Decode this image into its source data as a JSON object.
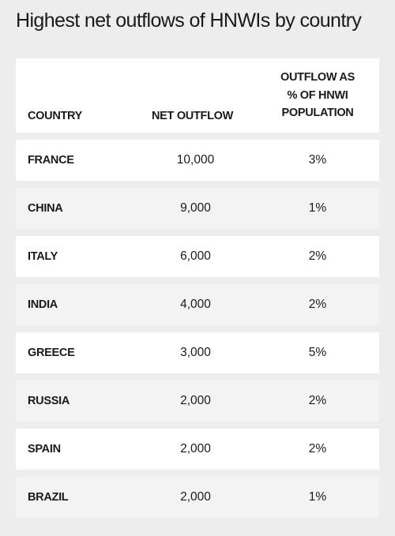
{
  "title": "Highest net outflows of HNWIs by country",
  "headers": {
    "country": "COUNTRY",
    "net_outflow": "NET OUTFLOW",
    "percent_lines": [
      "OUTFLOW AS",
      "% OF HNWI",
      "POPULATION"
    ]
  },
  "rows": [
    {
      "country": "FRANCE",
      "net_outflow": "10,000",
      "percent": "3%"
    },
    {
      "country": "CHINA",
      "net_outflow": "9,000",
      "percent": "1%"
    },
    {
      "country": "ITALY",
      "net_outflow": "6,000",
      "percent": "2%"
    },
    {
      "country": "INDIA",
      "net_outflow": "4,000",
      "percent": "2%"
    },
    {
      "country": "GREECE",
      "net_outflow": "3,000",
      "percent": "5%"
    },
    {
      "country": "RUSSIA",
      "net_outflow": "2,000",
      "percent": "2%"
    },
    {
      "country": "SPAIN",
      "net_outflow": "2,000",
      "percent": "2%"
    },
    {
      "country": "BRAZIL",
      "net_outflow": "2,000",
      "percent": "1%"
    }
  ],
  "colors": {
    "page_background": "#ededed",
    "row_background": "#ffffff",
    "alt_row_background": "#f3f3f3",
    "text": "#1a1a1a"
  },
  "chart_data": {
    "type": "table",
    "title": "Highest net outflows of HNWIs by country",
    "columns": [
      "COUNTRY",
      "NET OUTFLOW",
      "OUTFLOW AS % OF HNWI POPULATION"
    ],
    "categories": [
      "FRANCE",
      "CHINA",
      "ITALY",
      "INDIA",
      "GREECE",
      "RUSSIA",
      "SPAIN",
      "BRAZIL"
    ],
    "series": [
      {
        "name": "NET OUTFLOW",
        "values": [
          10000,
          9000,
          6000,
          4000,
          3000,
          2000,
          2000,
          2000
        ]
      },
      {
        "name": "OUTFLOW AS % OF HNWI POPULATION",
        "values": [
          3,
          1,
          2,
          2,
          5,
          2,
          2,
          1
        ]
      }
    ]
  }
}
